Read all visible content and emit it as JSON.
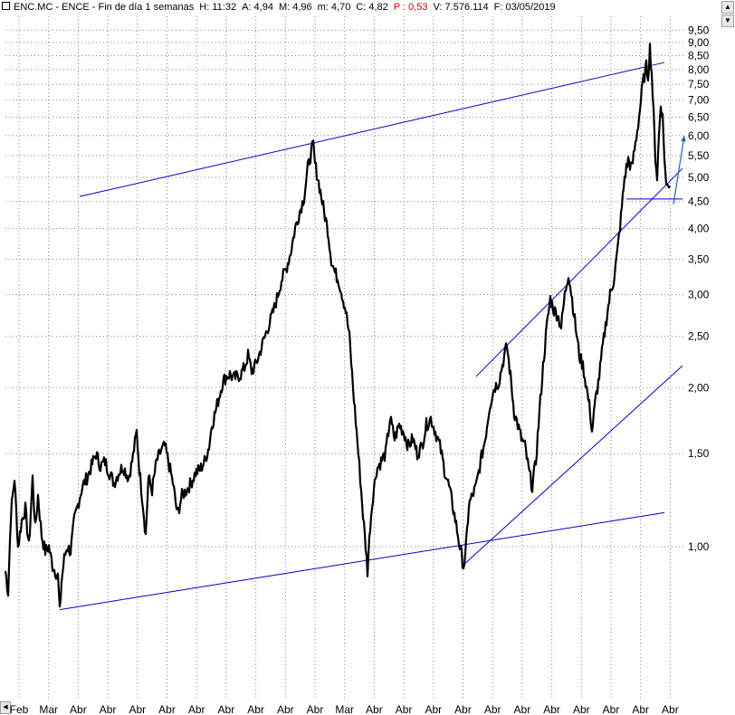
{
  "header": {
    "symbol": "ENC.MC - ENCE - Fin de día 1 semanas",
    "high_label": "H: 11:32",
    "open_label": "A: 4,94",
    "max_label": "M: 4,96",
    "min_label": "m: 4,70",
    "close_label": "C: 4,82",
    "change_label": "P : 0,53",
    "volume_label": "V: 7.576.114",
    "date_label": "F: 03/05/2019"
  },
  "colors": {
    "price": "#000000",
    "trendline": "#0000c8",
    "arrow": "#1e64b4",
    "grid": "#808080",
    "change": "#e00000"
  },
  "chart_data": {
    "type": "line",
    "scale": "log",
    "grid": true,
    "ylim": [
      0.72,
      9.8
    ],
    "y_ticks": [
      "9,50",
      "9,00",
      "8,50",
      "8,00",
      "7,50",
      "7,00",
      "6,50",
      "6,00",
      "5,50",
      "5,00",
      "4,50",
      "4,00",
      "3,50",
      "3,00",
      "2,50",
      "2,00",
      "1,50",
      "1,00"
    ],
    "y_tick_values": [
      9.5,
      9.0,
      8.5,
      8.0,
      7.5,
      7.0,
      6.5,
      6.0,
      5.5,
      5.0,
      4.5,
      4.0,
      3.5,
      3.0,
      2.5,
      2.0,
      1.5,
      1.0
    ],
    "x_ticks": [
      "Feb",
      "Mar",
      "Abr",
      "Abr",
      "Abr",
      "Abr",
      "Abr",
      "Abr",
      "Abr",
      "Abr",
      "Abr",
      "Mar",
      "Abr",
      "Abr",
      "Abr",
      "Abr",
      "Abr",
      "Abr",
      "Abr",
      "Abr",
      "Abr",
      "Abr",
      "Abr"
    ],
    "series": [
      {
        "values": [
          [
            0,
            0.9
          ],
          [
            3,
            0.82
          ],
          [
            6,
            1.15
          ],
          [
            10,
            1.35
          ],
          [
            14,
            1.0
          ],
          [
            18,
            1.12
          ],
          [
            22,
            1.18
          ],
          [
            26,
            1.0
          ],
          [
            30,
            1.35
          ],
          [
            33,
            1.08
          ],
          [
            36,
            1.25
          ],
          [
            40,
            1.05
          ],
          [
            44,
            0.98
          ],
          [
            48,
            1.0
          ],
          [
            52,
            0.92
          ],
          [
            55,
            0.9
          ],
          [
            58,
            0.88
          ],
          [
            60,
            0.75
          ],
          [
            62,
            0.86
          ],
          [
            65,
            0.95
          ],
          [
            68,
            1.0
          ],
          [
            72,
            0.98
          ],
          [
            76,
            1.12
          ],
          [
            80,
            1.2
          ],
          [
            85,
            1.3
          ],
          [
            90,
            1.35
          ],
          [
            95,
            1.42
          ],
          [
            100,
            1.5
          ],
          [
            105,
            1.42
          ],
          [
            110,
            1.45
          ],
          [
            115,
            1.38
          ],
          [
            120,
            1.32
          ],
          [
            125,
            1.38
          ],
          [
            130,
            1.42
          ],
          [
            136,
            1.35
          ],
          [
            140,
            1.45
          ],
          [
            145,
            1.65
          ],
          [
            148,
            1.4
          ],
          [
            152,
            1.2
          ],
          [
            155,
            1.05
          ],
          [
            158,
            1.35
          ],
          [
            162,
            1.28
          ],
          [
            167,
            1.45
          ],
          [
            172,
            1.52
          ],
          [
            176,
            1.55
          ],
          [
            180,
            1.45
          ],
          [
            185,
            1.32
          ],
          [
            190,
            1.15
          ],
          [
            195,
            1.25
          ],
          [
            200,
            1.28
          ],
          [
            205,
            1.32
          ],
          [
            210,
            1.38
          ],
          [
            215,
            1.4
          ],
          [
            220,
            1.45
          ],
          [
            225,
            1.55
          ],
          [
            228,
            1.7
          ],
          [
            232,
            1.8
          ],
          [
            236,
            1.92
          ],
          [
            240,
            2.05
          ],
          [
            244,
            2.1
          ],
          [
            248,
            2.12
          ],
          [
            252,
            2.08
          ],
          [
            256,
            2.1
          ],
          [
            260,
            2.12
          ],
          [
            264,
            2.18
          ],
          [
            268,
            2.3
          ],
          [
            272,
            2.15
          ],
          [
            276,
            2.2
          ],
          [
            280,
            2.3
          ],
          [
            285,
            2.45
          ],
          [
            290,
            2.6
          ],
          [
            295,
            2.75
          ],
          [
            300,
            2.95
          ],
          [
            305,
            3.2
          ],
          [
            310,
            3.35
          ],
          [
            315,
            3.6
          ],
          [
            320,
            4.0
          ],
          [
            325,
            4.3
          ],
          [
            330,
            4.6
          ],
          [
            334,
            5.2
          ],
          [
            338,
            5.6
          ],
          [
            340,
            5.75
          ],
          [
            342,
            5.3
          ],
          [
            345,
            5.0
          ],
          [
            348,
            4.7
          ],
          [
            352,
            4.3
          ],
          [
            356,
            4.0
          ],
          [
            360,
            3.5
          ],
          [
            364,
            3.3
          ],
          [
            368,
            3.2
          ],
          [
            372,
            3.0
          ],
          [
            376,
            2.8
          ],
          [
            380,
            2.5
          ],
          [
            384,
            2.0
          ],
          [
            388,
            1.65
          ],
          [
            392,
            1.35
          ],
          [
            395,
            1.15
          ],
          [
            398,
            1.0
          ],
          [
            400,
            0.9
          ],
          [
            403,
            1.1
          ],
          [
            406,
            1.25
          ],
          [
            410,
            1.4
          ],
          [
            415,
            1.45
          ],
          [
            420,
            1.5
          ],
          [
            425,
            1.75
          ],
          [
            430,
            1.6
          ],
          [
            435,
            1.7
          ],
          [
            440,
            1.65
          ],
          [
            445,
            1.55
          ],
          [
            450,
            1.6
          ],
          [
            455,
            1.5
          ],
          [
            460,
            1.55
          ],
          [
            465,
            1.7
          ],
          [
            470,
            1.75
          ],
          [
            475,
            1.65
          ],
          [
            480,
            1.55
          ],
          [
            485,
            1.4
          ],
          [
            490,
            1.3
          ],
          [
            494,
            1.2
          ],
          [
            498,
            1.1
          ],
          [
            502,
            1.0
          ],
          [
            506,
            0.92
          ],
          [
            508,
            0.95
          ],
          [
            512,
            1.2
          ],
          [
            516,
            1.25
          ],
          [
            520,
            1.3
          ],
          [
            525,
            1.45
          ],
          [
            530,
            1.6
          ],
          [
            535,
            1.85
          ],
          [
            540,
            2.0
          ],
          [
            545,
            2.05
          ],
          [
            550,
            2.25
          ],
          [
            554,
            2.4
          ],
          [
            558,
            2.1
          ],
          [
            562,
            1.8
          ],
          [
            566,
            1.7
          ],
          [
            570,
            1.6
          ],
          [
            574,
            1.55
          ],
          [
            578,
            1.4
          ],
          [
            582,
            1.3
          ],
          [
            586,
            1.45
          ],
          [
            590,
            1.8
          ],
          [
            594,
            2.2
          ],
          [
            598,
            2.6
          ],
          [
            602,
            2.95
          ],
          [
            606,
            2.8
          ],
          [
            610,
            2.75
          ],
          [
            614,
            2.6
          ],
          [
            618,
            3.0
          ],
          [
            622,
            3.3
          ],
          [
            626,
            2.95
          ],
          [
            630,
            2.6
          ],
          [
            634,
            2.3
          ],
          [
            638,
            2.2
          ],
          [
            642,
            2.0
          ],
          [
            646,
            1.8
          ],
          [
            648,
            1.65
          ],
          [
            652,
            1.9
          ],
          [
            656,
            2.1
          ],
          [
            660,
            2.4
          ],
          [
            664,
            2.7
          ],
          [
            668,
            3.0
          ],
          [
            672,
            3.2
          ],
          [
            676,
            3.6
          ],
          [
            680,
            4.2
          ],
          [
            684,
            5.0
          ],
          [
            688,
            5.4
          ],
          [
            692,
            5.2
          ],
          [
            696,
            5.8
          ],
          [
            700,
            6.5
          ],
          [
            704,
            7.5
          ],
          [
            708,
            8.1
          ],
          [
            710,
            7.8
          ],
          [
            712,
            8.8
          ],
          [
            714,
            7.9
          ],
          [
            716,
            6.6
          ],
          [
            718,
            5.5
          ],
          [
            720,
            5.0
          ],
          [
            722,
            6.0
          ],
          [
            724,
            6.9
          ],
          [
            726,
            6.5
          ],
          [
            728,
            5.5
          ],
          [
            730,
            4.8
          ],
          [
            732,
            4.9
          ],
          [
            734,
            4.82
          ]
        ]
      }
    ],
    "trendlines": [
      [
        [
          82,
          4.6
        ],
        [
          728,
          8.25
        ]
      ],
      [
        [
          60,
          0.76
        ],
        [
          728,
          1.16
        ]
      ],
      [
        [
          505,
          0.92
        ],
        [
          748,
          2.2
        ]
      ],
      [
        [
          520,
          2.1
        ],
        [
          748,
          5.2
        ]
      ],
      [
        [
          686,
          4.55
        ],
        [
          748,
          4.55
        ]
      ]
    ],
    "arrow": [
      [
        738,
        4.45
      ],
      [
        750,
        6.0
      ]
    ]
  }
}
